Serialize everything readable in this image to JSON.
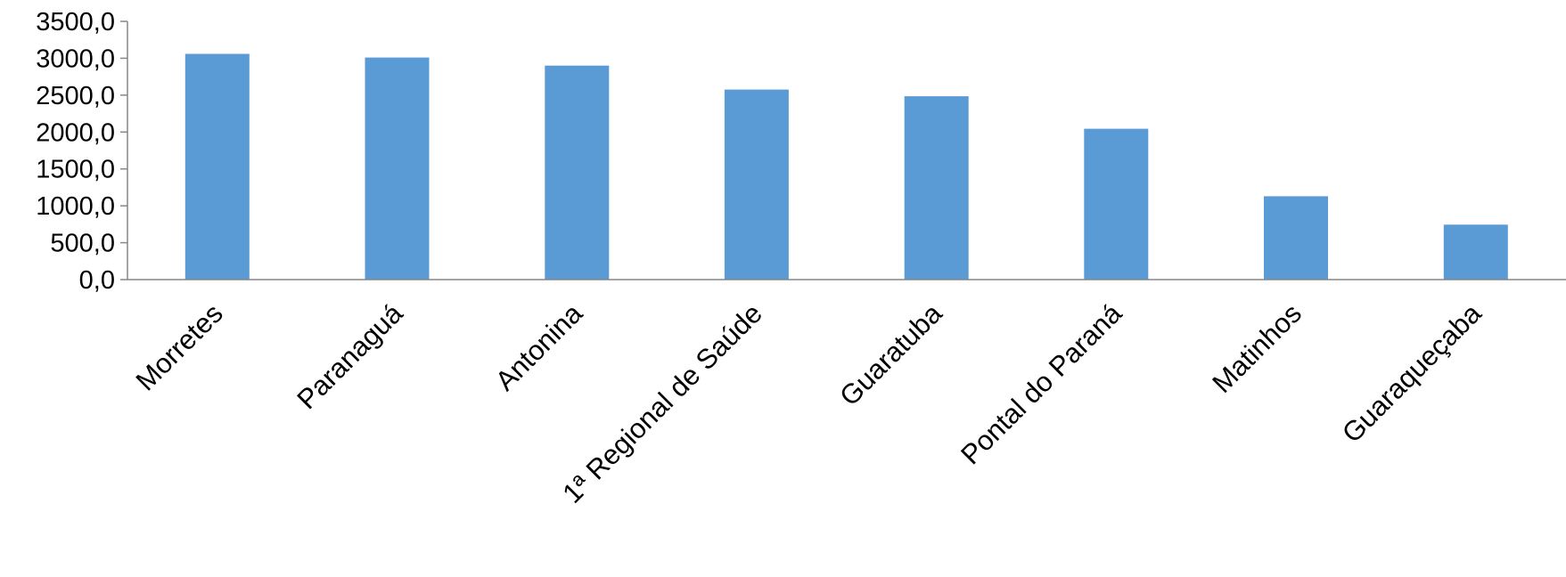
{
  "chart_data": {
    "type": "bar",
    "title": "",
    "xlabel": "",
    "ylabel": "",
    "categories": [
      "Morretes",
      "Paranaguá",
      "Antonina",
      "1ª Regional de Saúde",
      "Guaratuba",
      "Pontal do Paraná",
      "Matinhos",
      "Guaraqueçaba"
    ],
    "values": [
      3060,
      3010,
      2900,
      2575,
      2485,
      2045,
      1130,
      745
    ],
    "ylim": [
      0,
      3500
    ],
    "yticks": [
      0,
      500,
      1000,
      1500,
      2000,
      2500,
      3000,
      3500
    ],
    "ytick_labels": [
      "0,0",
      "500,0",
      "1000,0",
      "1500,0",
      "2000,0",
      "2500,0",
      "3000,0",
      "3500,0"
    ],
    "grid": false,
    "legend": "none",
    "colors": {
      "bar": "#5b9bd5",
      "axis": "#868686",
      "text": "#000000"
    }
  }
}
